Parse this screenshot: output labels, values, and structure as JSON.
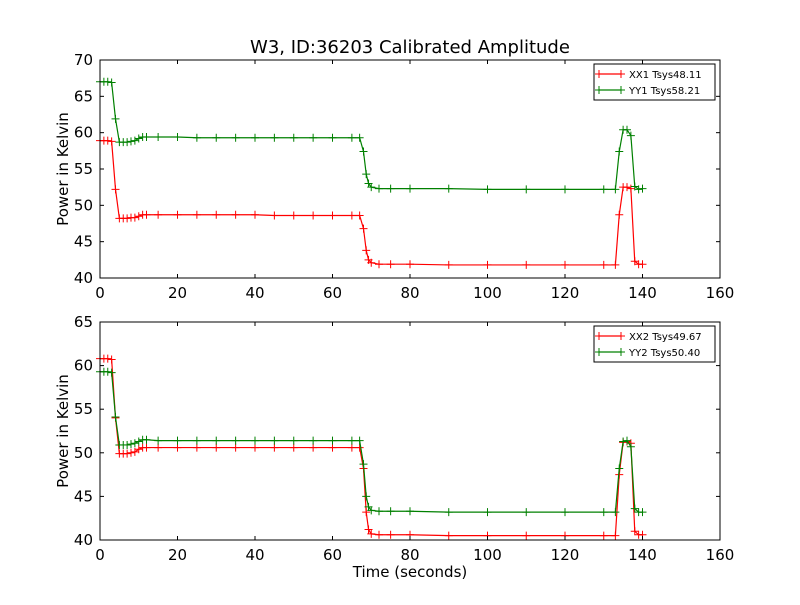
{
  "title": "W3, ID:36203 Calibrated Amplitude",
  "chart_data": [
    {
      "type": "line",
      "title": "W3, ID:36203 Calibrated Amplitude",
      "xlabel": "",
      "ylabel": "Power in Kelvin",
      "xlim": [
        0,
        160
      ],
      "ylim": [
        40,
        70
      ],
      "xticks": [
        0,
        20,
        40,
        60,
        80,
        100,
        120,
        140,
        160
      ],
      "yticks": [
        40,
        45,
        50,
        55,
        60,
        65,
        70
      ],
      "grid": false,
      "legend_position": "top-right",
      "marker": "plus",
      "series": [
        {
          "name": "XX1 Tsys48.11",
          "color": "#ff0000",
          "points": [
            [
              0,
              58.9
            ],
            [
              1,
              58.9
            ],
            [
              2,
              58.9
            ],
            [
              3,
              58.8
            ],
            [
              4,
              52.2
            ],
            [
              5,
              48.2
            ],
            [
              6,
              48.2
            ],
            [
              7,
              48.2
            ],
            [
              8,
              48.3
            ],
            [
              9,
              48.3
            ],
            [
              10,
              48.5
            ],
            [
              11,
              48.7
            ],
            [
              12,
              48.7
            ],
            [
              15,
              48.7
            ],
            [
              20,
              48.7
            ],
            [
              25,
              48.7
            ],
            [
              30,
              48.7
            ],
            [
              35,
              48.7
            ],
            [
              40,
              48.7
            ],
            [
              45,
              48.6
            ],
            [
              50,
              48.6
            ],
            [
              55,
              48.6
            ],
            [
              60,
              48.6
            ],
            [
              65,
              48.6
            ],
            [
              67,
              48.6
            ],
            [
              68,
              46.8
            ],
            [
              68.7,
              43.8
            ],
            [
              69.3,
              42.5
            ],
            [
              70,
              42.1
            ],
            [
              72,
              41.9
            ],
            [
              75,
              41.9
            ],
            [
              80,
              41.9
            ],
            [
              90,
              41.8
            ],
            [
              100,
              41.8
            ],
            [
              110,
              41.8
            ],
            [
              120,
              41.8
            ],
            [
              130,
              41.8
            ],
            [
              133,
              41.8
            ],
            [
              134,
              48.7
            ],
            [
              135,
              52.5
            ],
            [
              136,
              52.5
            ],
            [
              137,
              52.3
            ],
            [
              138,
              42.3
            ],
            [
              139,
              41.9
            ],
            [
              140,
              41.9
            ]
          ]
        },
        {
          "name": "YY1 Tsys58.21",
          "color": "#008000",
          "points": [
            [
              0,
              67.0
            ],
            [
              1,
              67.0
            ],
            [
              2,
              67.0
            ],
            [
              3,
              66.9
            ],
            [
              4,
              61.9
            ],
            [
              5,
              58.7
            ],
            [
              6,
              58.7
            ],
            [
              7,
              58.7
            ],
            [
              8,
              58.8
            ],
            [
              9,
              58.9
            ],
            [
              10,
              59.2
            ],
            [
              11,
              59.4
            ],
            [
              12,
              59.4
            ],
            [
              15,
              59.4
            ],
            [
              20,
              59.4
            ],
            [
              25,
              59.3
            ],
            [
              30,
              59.3
            ],
            [
              35,
              59.3
            ],
            [
              40,
              59.3
            ],
            [
              45,
              59.3
            ],
            [
              50,
              59.3
            ],
            [
              55,
              59.3
            ],
            [
              60,
              59.3
            ],
            [
              65,
              59.3
            ],
            [
              67,
              59.3
            ],
            [
              68,
              57.4
            ],
            [
              68.7,
              54.3
            ],
            [
              69.3,
              53.0
            ],
            [
              70,
              52.5
            ],
            [
              72,
              52.3
            ],
            [
              75,
              52.3
            ],
            [
              80,
              52.3
            ],
            [
              90,
              52.3
            ],
            [
              100,
              52.2
            ],
            [
              110,
              52.2
            ],
            [
              120,
              52.2
            ],
            [
              130,
              52.2
            ],
            [
              133,
              52.2
            ],
            [
              134,
              57.4
            ],
            [
              135,
              60.4
            ],
            [
              136,
              60.4
            ],
            [
              137,
              59.6
            ],
            [
              138,
              52.6
            ],
            [
              139,
              52.2
            ],
            [
              140,
              52.3
            ]
          ]
        }
      ]
    },
    {
      "type": "line",
      "title": "",
      "xlabel": "Time (seconds)",
      "ylabel": "Power in Kelvin",
      "xlim": [
        0,
        160
      ],
      "ylim": [
        40,
        65
      ],
      "xticks": [
        0,
        20,
        40,
        60,
        80,
        100,
        120,
        140,
        160
      ],
      "yticks": [
        40,
        45,
        50,
        55,
        60,
        65
      ],
      "grid": false,
      "legend_position": "top-right",
      "marker": "plus",
      "series": [
        {
          "name": "XX2 Tsys49.67",
          "color": "#ff0000",
          "points": [
            [
              0,
              60.8
            ],
            [
              1,
              60.8
            ],
            [
              2,
              60.8
            ],
            [
              3,
              60.7
            ],
            [
              4,
              54.0
            ],
            [
              5,
              49.9
            ],
            [
              6,
              49.9
            ],
            [
              7,
              49.9
            ],
            [
              8,
              50.0
            ],
            [
              9,
              50.1
            ],
            [
              10,
              50.4
            ],
            [
              11,
              50.6
            ],
            [
              12,
              50.6
            ],
            [
              15,
              50.6
            ],
            [
              20,
              50.6
            ],
            [
              25,
              50.6
            ],
            [
              30,
              50.6
            ],
            [
              35,
              50.6
            ],
            [
              40,
              50.6
            ],
            [
              45,
              50.6
            ],
            [
              50,
              50.6
            ],
            [
              55,
              50.6
            ],
            [
              60,
              50.6
            ],
            [
              65,
              50.6
            ],
            [
              67,
              50.6
            ],
            [
              68,
              48.2
            ],
            [
              68.7,
              43.2
            ],
            [
              69.3,
              41.2
            ],
            [
              70,
              40.7
            ],
            [
              72,
              40.6
            ],
            [
              75,
              40.6
            ],
            [
              80,
              40.6
            ],
            [
              90,
              40.5
            ],
            [
              100,
              40.5
            ],
            [
              110,
              40.5
            ],
            [
              120,
              40.5
            ],
            [
              130,
              40.5
            ],
            [
              133,
              40.5
            ],
            [
              134,
              47.5
            ],
            [
              135,
              51.2
            ],
            [
              136,
              51.3
            ],
            [
              137,
              51.1
            ],
            [
              138,
              41.0
            ],
            [
              139,
              40.6
            ],
            [
              140,
              40.6
            ]
          ]
        },
        {
          "name": "YY2 Tsys50.40",
          "color": "#008000",
          "points": [
            [
              0,
              59.3
            ],
            [
              1,
              59.3
            ],
            [
              2,
              59.3
            ],
            [
              3,
              59.2
            ],
            [
              4,
              54.1
            ],
            [
              5,
              50.9
            ],
            [
              6,
              50.9
            ],
            [
              7,
              50.9
            ],
            [
              8,
              51.0
            ],
            [
              9,
              51.1
            ],
            [
              10,
              51.3
            ],
            [
              11,
              51.5
            ],
            [
              12,
              51.5
            ],
            [
              15,
              51.4
            ],
            [
              20,
              51.4
            ],
            [
              25,
              51.4
            ],
            [
              30,
              51.4
            ],
            [
              35,
              51.4
            ],
            [
              40,
              51.4
            ],
            [
              45,
              51.4
            ],
            [
              50,
              51.4
            ],
            [
              55,
              51.4
            ],
            [
              60,
              51.4
            ],
            [
              65,
              51.4
            ],
            [
              67,
              51.4
            ],
            [
              68,
              48.7
            ],
            [
              68.7,
              45.0
            ],
            [
              69.3,
              43.8
            ],
            [
              70,
              43.4
            ],
            [
              72,
              43.3
            ],
            [
              75,
              43.3
            ],
            [
              80,
              43.3
            ],
            [
              90,
              43.2
            ],
            [
              100,
              43.2
            ],
            [
              110,
              43.2
            ],
            [
              120,
              43.2
            ],
            [
              130,
              43.2
            ],
            [
              133,
              43.2
            ],
            [
              134,
              48.2
            ],
            [
              135,
              51.3
            ],
            [
              136,
              51.4
            ],
            [
              137,
              50.7
            ],
            [
              138,
              43.6
            ],
            [
              139,
              43.2
            ],
            [
              140,
              43.2
            ]
          ]
        }
      ]
    }
  ]
}
